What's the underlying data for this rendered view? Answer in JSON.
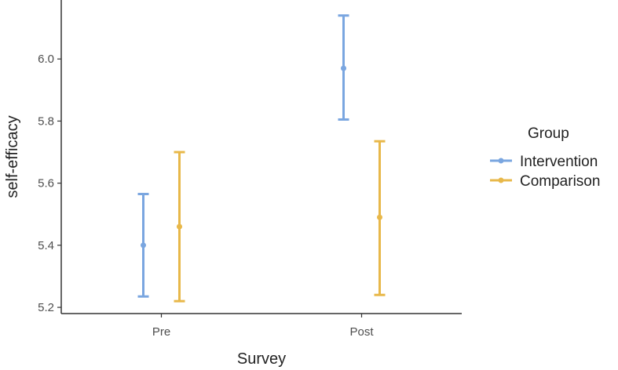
{
  "chart_data": {
    "type": "errorbar",
    "xlabel": "Survey",
    "ylabel": "self-efficacy",
    "categories": [
      "Pre",
      "Post"
    ],
    "ylim": [
      5.18,
      6.19
    ],
    "yticks": [
      5.2,
      5.4,
      5.6,
      5.8,
      6.0
    ],
    "ytick_labels": [
      "5.2",
      "5.4",
      "5.6",
      "5.8",
      "6.0"
    ],
    "grid": false,
    "legend": {
      "title": "Group",
      "placement": "right"
    },
    "series": [
      {
        "name": "Intervention",
        "color": "#7aa6e0",
        "points": [
          {
            "x": "Pre",
            "y": 5.4,
            "lo": 5.235,
            "hi": 5.565
          },
          {
            "x": "Post",
            "y": 5.97,
            "lo": 5.805,
            "hi": 6.14
          }
        ]
      },
      {
        "name": "Comparison",
        "color": "#e8b84a",
        "points": [
          {
            "x": "Pre",
            "y": 5.46,
            "lo": 5.22,
            "hi": 5.7
          },
          {
            "x": "Post",
            "y": 5.49,
            "lo": 5.24,
            "hi": 5.735
          }
        ]
      }
    ]
  }
}
